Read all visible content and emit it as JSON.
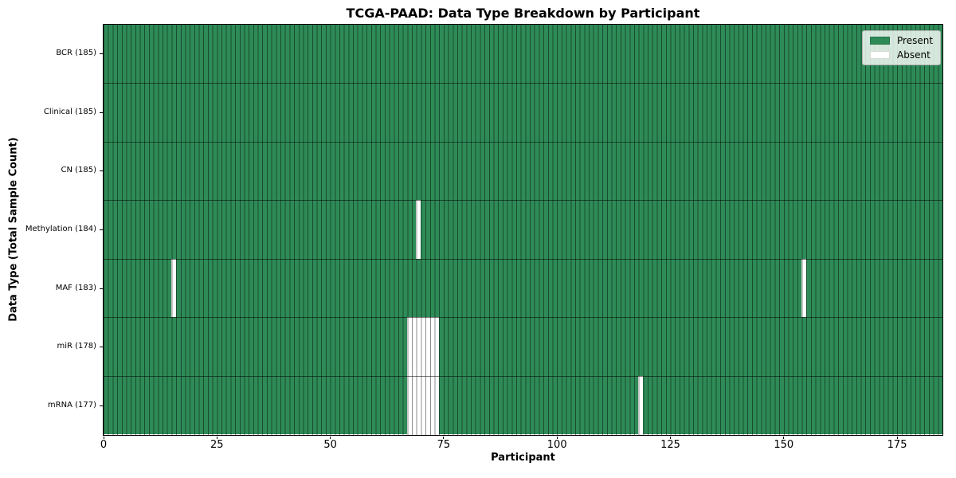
{
  "figure_title": "TCGA-PAAD: Data Type Breakdown by Participant",
  "chart_data": {
    "type": "heatmap",
    "title": "TCGA-PAAD: Data Type Breakdown by Participant",
    "xlabel": "Participant",
    "ylabel": "Data Type (Total Sample Count)",
    "xlim": [
      0,
      185
    ],
    "x_ticks": [
      0,
      25,
      50,
      75,
      100,
      125,
      150,
      175
    ],
    "n_participants": 185,
    "grid": false,
    "legend_position": "upper right",
    "rows": [
      {
        "label": "BCR (185)",
        "data_type": "BCR",
        "total": 185,
        "absent_participants": []
      },
      {
        "label": "Clinical (185)",
        "data_type": "Clinical",
        "total": 185,
        "absent_participants": []
      },
      {
        "label": "CN (185)",
        "data_type": "CN",
        "total": 185,
        "absent_participants": []
      },
      {
        "label": "Methylation (184)",
        "data_type": "Methylation",
        "total": 184,
        "absent_participants": [
          69
        ]
      },
      {
        "label": "MAF (183)",
        "data_type": "MAF",
        "total": 183,
        "absent_participants": [
          15,
          154
        ]
      },
      {
        "label": "miR (178)",
        "data_type": "miR",
        "total": 178,
        "absent_participants": [
          67,
          68,
          69,
          70,
          71,
          72,
          73
        ]
      },
      {
        "label": "mRNA (177)",
        "data_type": "mRNA",
        "total": 177,
        "absent_participants": [
          67,
          68,
          69,
          70,
          71,
          72,
          73,
          118
        ]
      }
    ],
    "legend": [
      {
        "label": "Present",
        "swatch_color": "#2e8b57"
      },
      {
        "label": "Absent",
        "swatch_color": "#ffffff"
      }
    ],
    "colors": {
      "present": "#2e8b57",
      "absent": "#ffffff",
      "cell_edge": "rgba(0,0,0,0.45)",
      "row_separator": "rgba(0,0,0,0.5)",
      "spine": "#000000"
    }
  }
}
